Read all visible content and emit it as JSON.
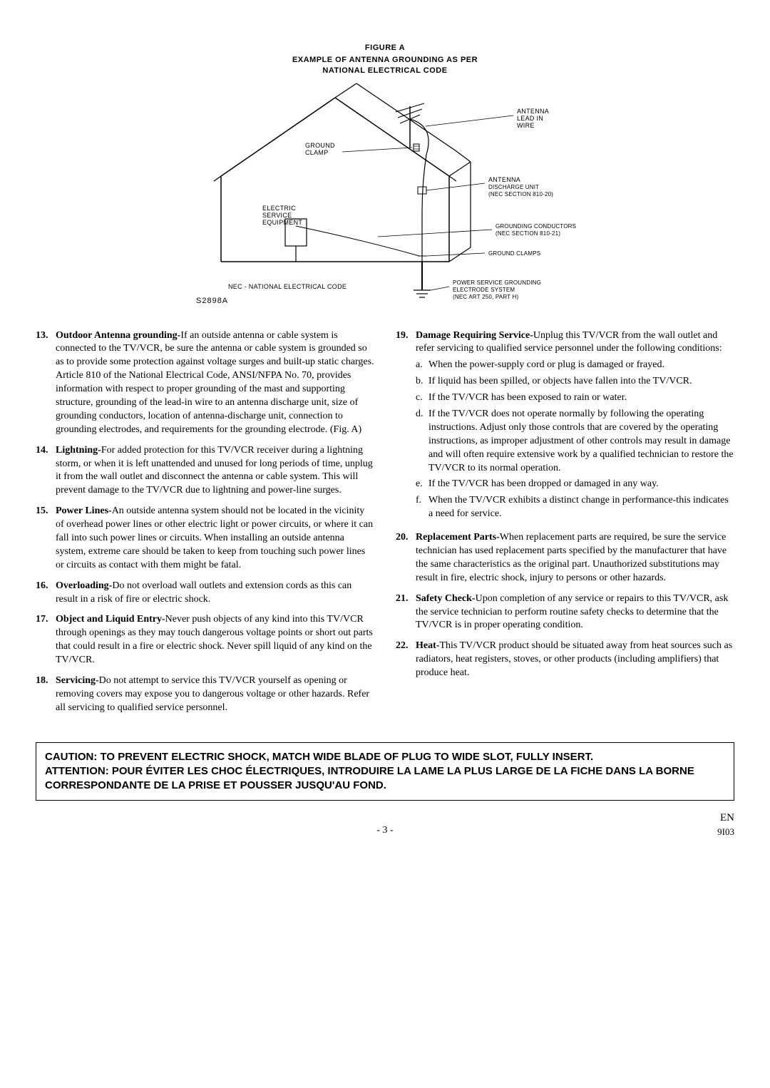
{
  "figure": {
    "title": "FIGURE A",
    "subtitle1": "EXAMPLE OF ANTENNA GROUNDING AS PER",
    "subtitle2": "NATIONAL ELECTRICAL CODE",
    "ref": "S2898A",
    "labels": {
      "antenna_lead1": "ANTENNA",
      "antenna_lead2": "LEAD IN",
      "antenna_lead3": "WIRE",
      "ground_clamp1": "GROUND",
      "ground_clamp2": "CLAMP",
      "discharge1": "ANTENNA",
      "discharge2": "DISCHARGE UNIT",
      "discharge3": "(NEC SECTION 810-20)",
      "electric1": "ELECTRIC",
      "electric2": "SERVICE",
      "electric3": "EQUIPMENT",
      "gconductors1": "GROUNDING CONDUCTORS",
      "gconductors2": "(NEC SECTION 810-21)",
      "gclamps": "GROUND CLAMPS",
      "nec": "NEC - NATIONAL ELECTRICAL CODE",
      "power1": "POWER SERVICE GROUNDING",
      "power2": "ELECTRODE SYSTEM",
      "power3": "(NEC ART 250, PART H)"
    }
  },
  "left": [
    {
      "n": "13.",
      "lead": "Outdoor Antenna grounding-",
      "text": "If an outside antenna or cable system is connected to the TV/VCR, be sure the antenna or cable system is grounded so as to provide some protection against voltage surges and built-up static charges. Article 810 of the National Electrical Code, ANSI/NFPA No. 70, provides information with respect to proper grounding of the mast and supporting structure, grounding of the lead-in wire to an antenna discharge unit, size of grounding conductors, location of antenna-discharge unit, connection to grounding electrodes, and requirements for the grounding electrode. (Fig. A)"
    },
    {
      "n": "14.",
      "lead": "Lightning-",
      "text": "For added protection for this TV/VCR receiver during a lightning storm, or when it is left unattended and unused for long periods of time, unplug it from the wall outlet and disconnect the antenna or cable system. This will prevent damage to the TV/VCR due to lightning and power-line surges."
    },
    {
      "n": "15.",
      "lead": "Power Lines-",
      "text": "An outside antenna system should not be located in the vicinity of overhead power lines or other electric light or power circuits, or where it can fall into such power lines or circuits. When installing an outside antenna system, extreme care should be taken to keep from touching such power lines or circuits as contact with them might be fatal."
    },
    {
      "n": "16.",
      "lead": "Overloading-",
      "text": "Do not overload wall outlets and extension cords as this can result in a risk of fire or electric shock."
    },
    {
      "n": "17.",
      "lead": "Object and Liquid Entry-",
      "text": "Never push objects of any kind into this TV/VCR through openings as they may touch dangerous voltage points or short out parts that could result in a fire or electric shock. Never spill liquid of any kind on the TV/VCR."
    },
    {
      "n": "18.",
      "lead": "Servicing-",
      "text": "Do not attempt to service this TV/VCR yourself as opening or removing covers may expose you to dangerous voltage or other hazards. Refer all servicing to qualified service personnel."
    }
  ],
  "right": [
    {
      "n": "19.",
      "lead": "Damage Requiring Service-",
      "text": "Unplug this TV/VCR from the wall outlet and refer servicing to qualified service personnel under the following conditions:",
      "sub": [
        {
          "l": "a.",
          "t": "When the power-supply cord or plug is damaged or frayed."
        },
        {
          "l": "b.",
          "t": "If liquid has been spilled, or objects have fallen into the TV/VCR."
        },
        {
          "l": "c.",
          "t": "If the TV/VCR has been exposed to rain or water."
        },
        {
          "l": "d.",
          "t": "If the TV/VCR does not operate normally by following the operating instructions. Adjust only those controls that are covered by the operating instructions, as improper adjustment of other controls may result in damage and will often require extensive work by a qualified technician to restore the TV/VCR to its normal operation."
        },
        {
          "l": "e.",
          "t": "If the TV/VCR has been dropped or damaged in any way."
        },
        {
          "l": "f.",
          "t": "When the TV/VCR exhibits a distinct change in performance-this indicates a need for service."
        }
      ]
    },
    {
      "n": "20.",
      "lead": "Replacement Parts-",
      "text": "When replacement parts are required, be sure the service technician has used replacement parts specified by the manufacturer that have the same characteristics as the original part. Unauthorized substitutions may result in fire, electric shock, injury to persons or other hazards."
    },
    {
      "n": "21.",
      "lead": "Safety Check-",
      "text": "Upon completion of any service or repairs to this TV/VCR, ask the service technician to perform routine safety checks to determine that the TV/VCR is in proper operating condition."
    },
    {
      "n": "22.",
      "lead": "Heat-",
      "text": "This TV/VCR product should be situated away from heat sources such as radiators, heat registers, stoves, or other products (including amplifiers) that produce heat."
    }
  ],
  "caution": {
    "l1": "CAUTION: TO PREVENT ELECTRIC SHOCK, MATCH WIDE BLADE OF PLUG TO WIDE SLOT, FULLY INSERT.",
    "l2": "ATTENTION: POUR ÉVITER LES CHOC ÉLECTRIQUES, INTRODUIRE LA LAME LA PLUS LARGE DE LA FICHE DANS LA BORNE CORRESPONDANTE DE LA PRISE ET POUSSER JUSQU'AU FOND."
  },
  "footer": {
    "page": "- 3 -",
    "en": "EN",
    "code": "9I03"
  }
}
